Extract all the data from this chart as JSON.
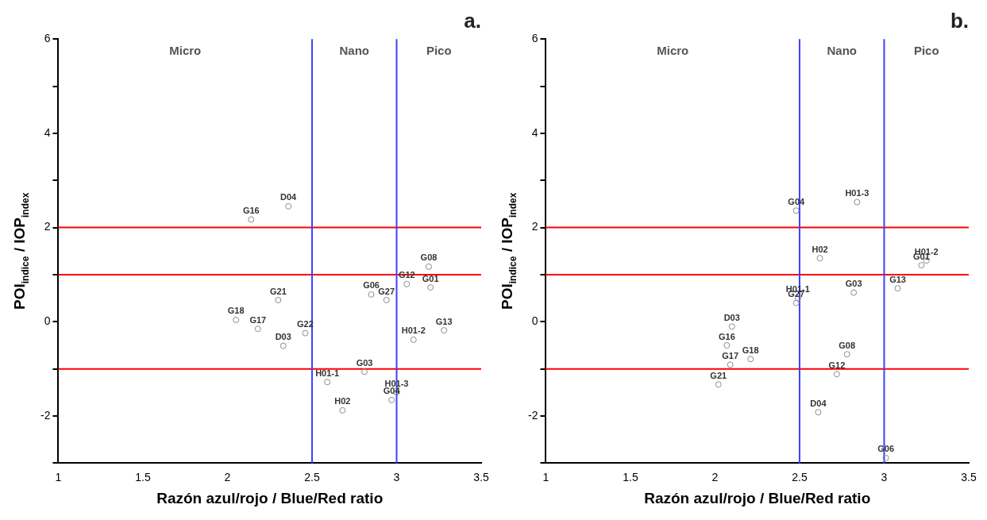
{
  "chart_data": [
    {
      "type": "scatter",
      "title": "a.",
      "xlabel": "Razón azul/rojo / Blue/Red ratio",
      "ylabel": "POI$_{indice}$ / IOP$_{index}$",
      "xlim": [
        1,
        3.5
      ],
      "xticks": [
        1,
        1.5,
        2,
        2.5,
        3,
        3.5
      ],
      "ylim": [
        -3,
        6
      ],
      "yticks": [
        {
          "value": -3,
          "label": null
        },
        -2,
        {
          "value": -1,
          "label": null
        },
        0,
        {
          "value": 1,
          "label": null
        },
        2,
        {
          "value": 3,
          "label": null
        },
        4,
        {
          "value": 5,
          "label": null
        },
        6
      ],
      "grid": false,
      "legend": false,
      "marker": "circle",
      "series": [
        {
          "color": "#8c8c8c",
          "x": [
            2.14,
            2.36,
            3.19,
            3.06,
            3.2,
            2.85,
            2.94,
            2.3,
            2.05,
            2.18,
            2.46,
            2.33,
            3.28,
            3.1,
            2.81,
            2.59,
            2.68,
            3.0,
            2.97
          ],
          "values": [
            2.17,
            2.45,
            1.17,
            0.8,
            0.73,
            0.58,
            0.46,
            0.46,
            0.04,
            -0.15,
            -0.24,
            -0.51,
            -0.18,
            -0.38,
            -1.06,
            -1.28,
            -1.88,
            -1.5,
            -1.66
          ]
        }
      ],
      "ref_lines": [
        {
          "axis": "y",
          "value": 2,
          "color": "#ff0000"
        },
        {
          "axis": "y",
          "value": 1,
          "color": "#ff0000"
        },
        {
          "axis": "y",
          "value": -1,
          "color": "#ff0000"
        },
        {
          "axis": "x",
          "value": 2.5,
          "color": "#4040ff"
        },
        {
          "axis": "x",
          "value": 3,
          "color": "#4040ff"
        }
      ],
      "annotations": [
        "Micro",
        "Nano",
        "Pico",
        {
          "text": "G16",
          "x": 2.14,
          "y": 2.17
        },
        {
          "text": "D04",
          "x": 2.36,
          "y": 2.45
        },
        {
          "text": "G08",
          "x": 3.19,
          "y": 1.17
        },
        {
          "text": "G12",
          "x": 3.06,
          "y": 0.8
        },
        {
          "text": "G01",
          "x": 3.2,
          "y": 0.73
        },
        {
          "text": "G06",
          "x": 2.85,
          "y": 0.58
        },
        {
          "text": "G27",
          "x": 2.94,
          "y": 0.46
        },
        {
          "text": "G21",
          "x": 2.3,
          "y": 0.46
        },
        {
          "text": "G18",
          "x": 2.05,
          "y": 0.04
        },
        {
          "text": "G17",
          "x": 2.18,
          "y": -0.15
        },
        {
          "text": "G22",
          "x": 2.46,
          "y": -0.24
        },
        {
          "text": "D03",
          "x": 2.33,
          "y": -0.51
        },
        {
          "text": "G13",
          "x": 3.28,
          "y": -0.18
        },
        {
          "text": "H01-2",
          "x": 3.1,
          "y": -0.38
        },
        {
          "text": "G03",
          "x": 2.81,
          "y": -1.06
        },
        {
          "text": "H01-1",
          "x": 2.59,
          "y": -1.28
        },
        {
          "text": "H02",
          "x": 2.68,
          "y": -1.88
        },
        {
          "text": "H01-3",
          "x": 3.0,
          "y": -1.5
        },
        {
          "text": "G04",
          "x": 2.97,
          "y": -1.66
        }
      ]
    },
    {
      "type": "scatter",
      "title": "b.",
      "xlabel": "Razón azul/rojo / Blue/Red ratio",
      "ylabel": "POI$_{indice}$ / IOP$_{index}$",
      "xlim": [
        1,
        3.5
      ],
      "xticks": [
        1,
        1.5,
        2,
        2.5,
        3,
        3.5
      ],
      "ylim": [
        -3,
        6
      ],
      "yticks": [
        {
          "value": -3,
          "label": null
        },
        -2,
        {
          "value": -1,
          "label": null
        },
        0,
        {
          "value": 1,
          "label": null
        },
        2,
        {
          "value": 3,
          "label": null
        },
        4,
        {
          "value": 5,
          "label": null
        },
        6
      ],
      "grid": false,
      "legend": false,
      "marker": "circle",
      "series": [
        {
          "color": "#8c8c8c",
          "x": [
            2.48,
            2.84,
            2.62,
            3.25,
            3.22,
            3.08,
            2.82,
            2.49,
            2.48,
            2.1,
            2.07,
            2.21,
            2.09,
            2.02,
            2.78,
            2.72,
            2.61,
            3.01
          ],
          "values": [
            2.36,
            2.54,
            1.35,
            1.3,
            1.2,
            0.71,
            0.62,
            0.5,
            0.4,
            -0.1,
            -0.5,
            -0.79,
            -0.91,
            -1.33,
            -0.69,
            -1.11,
            -1.92,
            -2.89
          ]
        }
      ],
      "ref_lines": [
        {
          "axis": "y",
          "value": 2,
          "color": "#ff0000"
        },
        {
          "axis": "y",
          "value": 1,
          "color": "#ff0000"
        },
        {
          "axis": "y",
          "value": -1,
          "color": "#ff0000"
        },
        {
          "axis": "x",
          "value": 2.5,
          "color": "#4040ff"
        },
        {
          "axis": "x",
          "value": 3,
          "color": "#4040ff"
        }
      ],
      "annotations": [
        "Micro",
        "Nano",
        "Pico",
        {
          "text": "G04",
          "x": 2.48,
          "y": 2.36
        },
        {
          "text": "H01-3",
          "x": 2.84,
          "y": 2.54
        },
        {
          "text": "H02",
          "x": 2.62,
          "y": 1.35
        },
        {
          "text": "H01-2",
          "x": 3.25,
          "y": 1.3
        },
        {
          "text": "G01",
          "x": 3.22,
          "y": 1.2
        },
        {
          "text": "G13",
          "x": 3.08,
          "y": 0.71
        },
        {
          "text": "G03",
          "x": 2.82,
          "y": 0.62
        },
        {
          "text": "H01-1",
          "x": 2.49,
          "y": 0.5
        },
        {
          "text": "G27",
          "x": 2.48,
          "y": 0.4
        },
        {
          "text": "D03",
          "x": 2.1,
          "y": -0.1
        },
        {
          "text": "G16",
          "x": 2.07,
          "y": -0.5
        },
        {
          "text": "G18",
          "x": 2.21,
          "y": -0.79
        },
        {
          "text": "G17",
          "x": 2.09,
          "y": -0.91
        },
        {
          "text": "G21",
          "x": 2.02,
          "y": -1.33
        },
        {
          "text": "G08",
          "x": 2.78,
          "y": -0.69
        },
        {
          "text": "G12",
          "x": 2.72,
          "y": -1.11
        },
        {
          "text": "D04",
          "x": 2.61,
          "y": -1.92
        },
        {
          "text": "G06",
          "x": 3.01,
          "y": -2.89
        }
      ]
    }
  ]
}
